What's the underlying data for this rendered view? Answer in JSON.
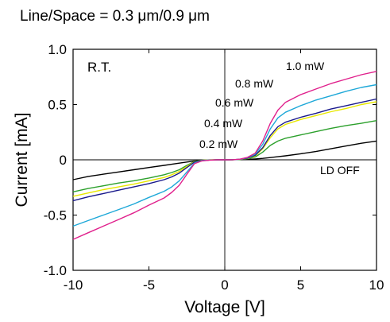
{
  "chart_data": {
    "type": "line",
    "title": "Line/Space = 0.3 μm/0.9 μm",
    "xlabel": "Voltage [V]",
    "ylabel": "Current [mA]",
    "xlim": [
      -10,
      10
    ],
    "ylim": [
      -1.0,
      1.0
    ],
    "x_ticks": [
      -10,
      -5,
      0,
      5,
      10
    ],
    "x_tick_labels": [
      "-10",
      "-5",
      "0",
      "5",
      "10"
    ],
    "y_ticks": [
      -1.0,
      -0.5,
      0,
      0.5,
      1.0
    ],
    "y_tick_labels": [
      "-1.0",
      "-0.5",
      "0",
      "0.5",
      "1.0"
    ],
    "grid": false,
    "legend": "none",
    "condition_label": "R.T.",
    "x": [
      -10,
      -9,
      -8,
      -7,
      -6,
      -5,
      -4,
      -3.5,
      -3,
      -2.5,
      -2,
      -1.5,
      -1,
      -0.5,
      0,
      0.5,
      1,
      1.5,
      2,
      2.5,
      3,
      3.5,
      4,
      5,
      6,
      7,
      8,
      9,
      10
    ],
    "series": [
      {
        "name": "LD OFF",
        "color": "#000000",
        "values": [
          -0.18,
          -0.15,
          -0.13,
          -0.11,
          -0.09,
          -0.07,
          -0.05,
          -0.04,
          -0.03,
          -0.02,
          -0.01,
          -0.005,
          -0.002,
          -0.001,
          0,
          0.001,
          0.002,
          0.004,
          0.008,
          0.013,
          0.02,
          0.028,
          0.036,
          0.055,
          0.075,
          0.1,
          0.125,
          0.15,
          0.17
        ]
      },
      {
        "name": "0.2 mW",
        "color": "#2ca02c",
        "values": [
          -0.29,
          -0.26,
          -0.235,
          -0.21,
          -0.19,
          -0.165,
          -0.135,
          -0.115,
          -0.09,
          -0.05,
          -0.015,
          -0.004,
          -0.001,
          0,
          0,
          0.001,
          0.003,
          0.01,
          0.025,
          0.07,
          0.13,
          0.17,
          0.195,
          0.225,
          0.255,
          0.285,
          0.31,
          0.33,
          0.355
        ]
      },
      {
        "name": "0.4 mW",
        "color": "#e8e800",
        "values": [
          -0.33,
          -0.3,
          -0.27,
          -0.245,
          -0.22,
          -0.19,
          -0.16,
          -0.135,
          -0.105,
          -0.06,
          -0.018,
          -0.005,
          -0.001,
          0,
          0,
          0.001,
          0.004,
          0.013,
          0.035,
          0.1,
          0.2,
          0.28,
          0.32,
          0.365,
          0.4,
          0.435,
          0.465,
          0.5,
          0.525
        ]
      },
      {
        "name": "0.6 mW",
        "color": "#1a1a8c",
        "values": [
          -0.37,
          -0.335,
          -0.305,
          -0.275,
          -0.245,
          -0.215,
          -0.18,
          -0.155,
          -0.12,
          -0.07,
          -0.02,
          -0.006,
          -0.002,
          0,
          0,
          0.001,
          0.005,
          0.015,
          0.04,
          0.11,
          0.22,
          0.3,
          0.34,
          0.385,
          0.42,
          0.46,
          0.49,
          0.52,
          0.55
        ]
      },
      {
        "name": "0.8 mW",
        "color": "#1ea8d8",
        "values": [
          -0.6,
          -0.55,
          -0.5,
          -0.45,
          -0.4,
          -0.34,
          -0.285,
          -0.245,
          -0.19,
          -0.11,
          -0.03,
          -0.008,
          -0.002,
          0,
          0,
          0.001,
          0.005,
          0.02,
          0.05,
          0.14,
          0.28,
          0.38,
          0.43,
          0.49,
          0.54,
          0.58,
          0.62,
          0.655,
          0.68
        ]
      },
      {
        "name": "1.0 mW",
        "color": "#e0208c",
        "values": [
          -0.72,
          -0.66,
          -0.6,
          -0.54,
          -0.48,
          -0.41,
          -0.345,
          -0.295,
          -0.23,
          -0.13,
          -0.035,
          -0.01,
          -0.003,
          0,
          0,
          0.001,
          0.006,
          0.022,
          0.06,
          0.17,
          0.33,
          0.45,
          0.52,
          0.59,
          0.64,
          0.69,
          0.73,
          0.77,
          0.8
        ]
      }
    ],
    "annotations": [
      "1.0 mW",
      "0.8 mW",
      "0.6 mW",
      "0.4 mW",
      "0.2 mW",
      "LD OFF"
    ]
  }
}
